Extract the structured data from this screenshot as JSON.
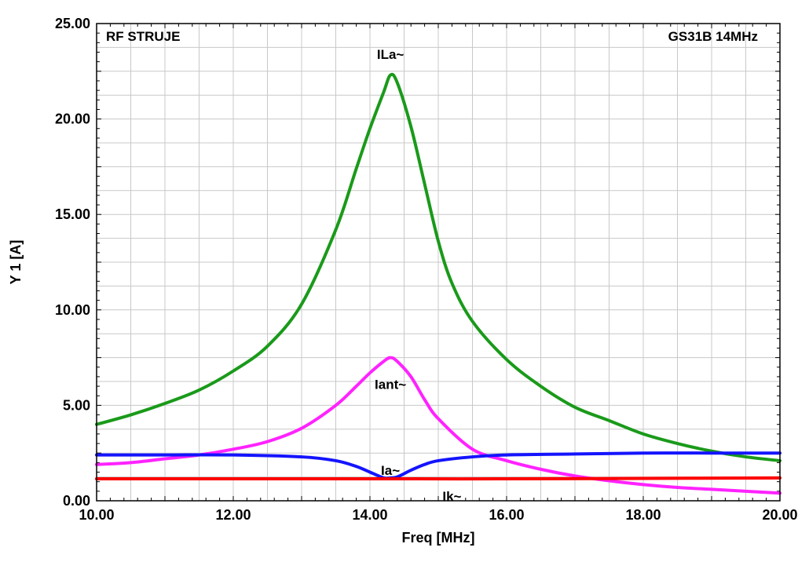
{
  "chart_data": {
    "type": "line",
    "title": "RF STRUJE",
    "subtitle": "GS31B 14MHz",
    "xlabel": "Freq [MHz]",
    "ylabel": "Y 1  [A]",
    "xlim": [
      10,
      20
    ],
    "ylim": [
      0,
      25
    ],
    "x_ticks": [
      "10.00",
      "12.00",
      "14.00",
      "16.00",
      "18.00",
      "20.00"
    ],
    "y_ticks": [
      "0.00",
      "5.00",
      "10.00",
      "15.00",
      "20.00",
      "25.00"
    ],
    "grid": true,
    "series": [
      {
        "name": "ILa~",
        "color": "#1a9a1a",
        "x": [
          10,
          10.5,
          11,
          11.5,
          12,
          12.5,
          13,
          13.5,
          13.8,
          14,
          14.2,
          14.3,
          14.4,
          14.6,
          14.8,
          15,
          15.2,
          15.5,
          16,
          16.5,
          17,
          17.5,
          18,
          18.5,
          19,
          19.5,
          20
        ],
        "y": [
          4.0,
          4.5,
          5.1,
          5.8,
          6.8,
          8.1,
          10.3,
          14.2,
          17.4,
          19.5,
          21.4,
          22.3,
          21.9,
          19.6,
          16.6,
          13.6,
          11.4,
          9.4,
          7.4,
          6.0,
          4.9,
          4.2,
          3.5,
          3.0,
          2.6,
          2.3,
          2.1
        ]
      },
      {
        "name": "Iant~",
        "color": "#ff22ff",
        "x": [
          10,
          10.5,
          11,
          11.5,
          12,
          12.5,
          13,
          13.5,
          13.8,
          14,
          14.2,
          14.3,
          14.4,
          14.6,
          14.8,
          15,
          15.5,
          16,
          16.5,
          17,
          17.5,
          18,
          18.5,
          19,
          19.5,
          20
        ],
        "y": [
          1.9,
          2.0,
          2.2,
          2.4,
          2.7,
          3.1,
          3.8,
          5.0,
          6.0,
          6.7,
          7.3,
          7.5,
          7.3,
          6.5,
          5.3,
          4.3,
          2.7,
          2.1,
          1.65,
          1.3,
          1.05,
          0.85,
          0.7,
          0.6,
          0.5,
          0.4
        ]
      },
      {
        "name": "Ia~",
        "color": "#1414ff",
        "x": [
          10,
          11,
          12,
          13,
          13.5,
          13.8,
          14,
          14.2,
          14.3,
          14.4,
          14.6,
          14.8,
          15,
          15.5,
          16,
          17,
          18,
          19,
          20
        ],
        "y": [
          2.4,
          2.4,
          2.4,
          2.3,
          2.1,
          1.8,
          1.5,
          1.2,
          1.2,
          1.25,
          1.6,
          1.9,
          2.1,
          2.3,
          2.4,
          2.45,
          2.5,
          2.5,
          2.5
        ]
      },
      {
        "name": "Ik~",
        "color": "#ff0000",
        "x": [
          10,
          12,
          14,
          16,
          18,
          20
        ],
        "y": [
          1.15,
          1.15,
          1.15,
          1.15,
          1.17,
          1.2
        ]
      }
    ],
    "annotations": [
      {
        "text": "ILa~",
        "x": 14.3,
        "y": 23.4
      },
      {
        "text": "Iant~",
        "x": 14.3,
        "y": 6.1
      },
      {
        "text": "Ia~",
        "x": 14.3,
        "y": 1.6
      },
      {
        "text": "Ik~",
        "x": 15.2,
        "y": 0.25
      }
    ]
  }
}
